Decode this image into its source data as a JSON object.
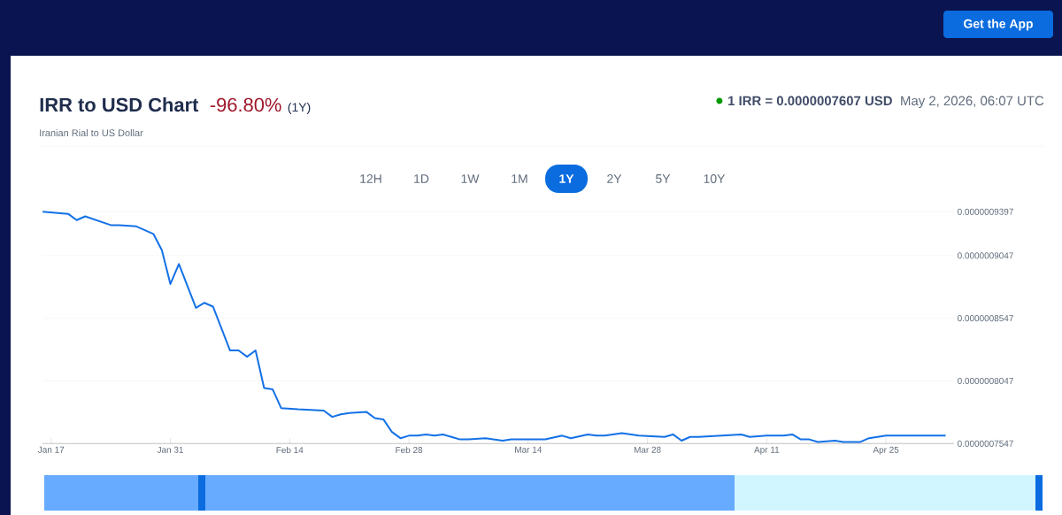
{
  "chart_data": {
    "type": "line",
    "title": "IRR to USD Chart",
    "subtitle": "Iranian Rial to US Dollar",
    "annotations": [
      "-96.80%",
      "(1Y)",
      "1 IRR = 0.0000007607 USD",
      "May 2, 2026, 06:07 UTC",
      "12H",
      "1D",
      "1W",
      "1M",
      "1Y",
      "2Y",
      "5Y",
      "10Y",
      "Get the App"
    ],
    "x": [
      "2026-01-16",
      "2026-01-19",
      "2026-01-20",
      "2026-01-21",
      "2026-01-24",
      "2026-01-25",
      "2026-01-27",
      "2026-01-29",
      "2026-01-30",
      "2026-01-31",
      "2026-02-01",
      "2026-02-03",
      "2026-02-04",
      "2026-02-05",
      "2026-02-07",
      "2026-02-08",
      "2026-02-09",
      "2026-02-10",
      "2026-02-11",
      "2026-02-12",
      "2026-02-13",
      "2026-02-15",
      "2026-02-18",
      "2026-02-19",
      "2026-02-20",
      "2026-02-21",
      "2026-02-23",
      "2026-02-24",
      "2026-02-25",
      "2026-02-26",
      "2026-02-27",
      "2026-02-28",
      "2026-03-01",
      "2026-03-02",
      "2026-03-03",
      "2026-03-04",
      "2026-03-06",
      "2026-03-07",
      "2026-03-09",
      "2026-03-11",
      "2026-03-12",
      "2026-03-14",
      "2026-03-16",
      "2026-03-18",
      "2026-03-19",
      "2026-03-21",
      "2026-03-22",
      "2026-03-23",
      "2026-03-25",
      "2026-03-27",
      "2026-03-30",
      "2026-03-31",
      "2026-04-01",
      "2026-04-02",
      "2026-04-03",
      "2026-04-08",
      "2026-04-09",
      "2026-04-11",
      "2026-04-13",
      "2026-04-14",
      "2026-04-15",
      "2026-04-16",
      "2026-04-17",
      "2026-04-19",
      "2026-04-20",
      "2026-04-22",
      "2026-04-23",
      "2026-04-25",
      "2026-04-26",
      "2026-04-29",
      "2026-05-02"
    ],
    "series": [
      {
        "color": "#1471e6",
        "values": [
          9.397e-07,
          9.38e-07,
          9.33e-07,
          9.36e-07,
          9.29e-07,
          9.29e-07,
          9.28e-07,
          9.22e-07,
          9.09e-07,
          8.82e-07,
          8.98e-07,
          8.63e-07,
          8.67e-07,
          8.64e-07,
          8.29e-07,
          8.29e-07,
          8.24e-07,
          8.29e-07,
          7.99e-07,
          7.98e-07,
          7.83e-07,
          7.82e-07,
          7.81e-07,
          7.76e-07,
          7.78e-07,
          7.79e-07,
          7.8e-07,
          7.75e-07,
          7.74e-07,
          7.64e-07,
          7.59e-07,
          7.61e-07,
          7.61e-07,
          7.62e-07,
          7.61e-07,
          7.62e-07,
          7.58e-07,
          7.58e-07,
          7.59e-07,
          7.57e-07,
          7.58e-07,
          7.58e-07,
          7.58e-07,
          7.61e-07,
          7.59e-07,
          7.62e-07,
          7.61e-07,
          7.61e-07,
          7.63e-07,
          7.61e-07,
          7.6e-07,
          7.62e-07,
          7.57e-07,
          7.6e-07,
          7.6e-07,
          7.62e-07,
          7.6e-07,
          7.61e-07,
          7.61e-07,
          7.62e-07,
          7.58e-07,
          7.58e-07,
          7.56e-07,
          7.57e-07,
          7.56e-07,
          7.56e-07,
          7.59e-07,
          7.61e-07,
          7.61e-07,
          7.61e-07,
          7.61e-07
        ]
      }
    ],
    "xlim": [
      "2026-01-16",
      "2026-05-03"
    ],
    "xticks": [
      {
        "value": "2026-01-17",
        "label": "Jan 17"
      },
      {
        "value": "2026-01-31",
        "label": "Jan 31"
      },
      {
        "value": "2026-02-14",
        "label": "Feb 14"
      },
      {
        "value": "2026-02-28",
        "label": "Feb 28"
      },
      {
        "value": "2026-03-14",
        "label": "Mar 14"
      },
      {
        "value": "2026-03-28",
        "label": "Mar 28"
      },
      {
        "value": "2026-04-11",
        "label": "Apr 11"
      },
      {
        "value": "2026-04-25",
        "label": "Apr 25"
      }
    ],
    "ylim": [
      7.547e-07,
      9.397e-07
    ],
    "yticks": [
      {
        "value": 7.547e-07,
        "label": "0.0000007547"
      },
      {
        "value": 8.047e-07,
        "label": "0.0000008047"
      },
      {
        "value": 8.547e-07,
        "label": "0.0000008547"
      },
      {
        "value": 9.047e-07,
        "label": "0.0000009047"
      },
      {
        "value": 9.397e-07,
        "label": "0.0000009397"
      }
    ],
    "grid": "y",
    "marker": "none"
  }
}
